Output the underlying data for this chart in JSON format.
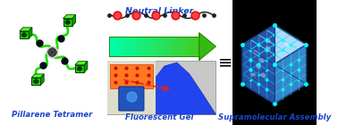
{
  "background_color": "#ffffff",
  "label1": "Pillarene Tetramer",
  "label2": "Fluorescent Gel",
  "label3": "Supramolecular Assembly",
  "label_color": "#1a44cc",
  "label_fontsize": 6.2,
  "arrow_label": "Neutral Linker",
  "arrow_label_color": "#1a44cc",
  "arrow_label_fontsize": 6.8,
  "equal_sign_color": "#000000",
  "pillarene_green": "#22dd00",
  "pillarene_dark": "#050a18",
  "linker_red": "#ee2222",
  "cube_face_left": "#2255aa",
  "cube_face_right": "#3399dd",
  "cube_face_top": "#aaeeff",
  "cube_bg": "#000000",
  "arrow_fill_left": "#00ffaa",
  "arrow_fill_right": "#44cc22",
  "fluorescent_red": "#ee2200"
}
